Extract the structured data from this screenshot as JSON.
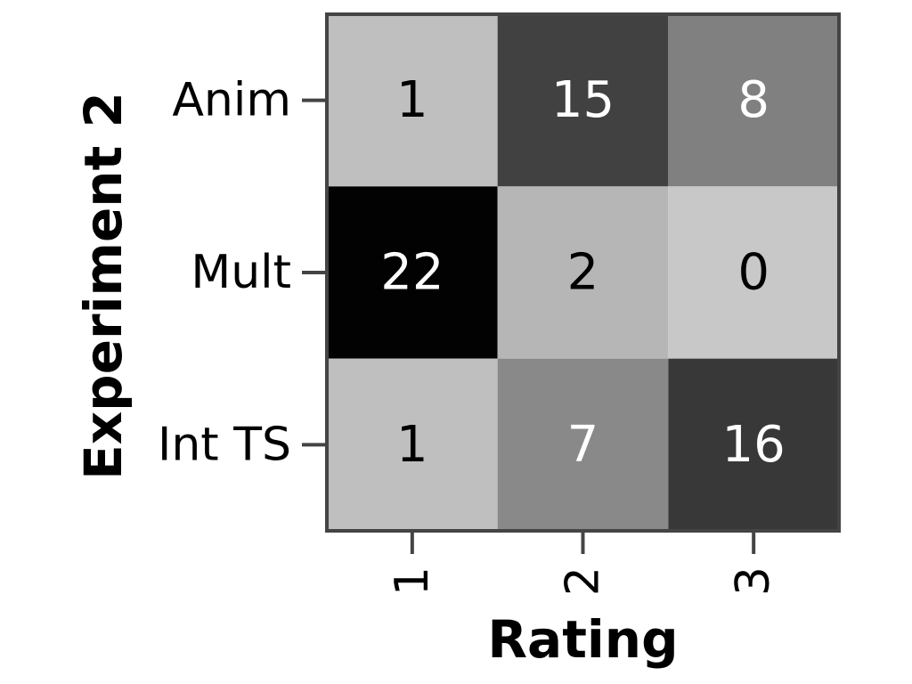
{
  "chart_data": {
    "type": "heatmap",
    "title": "",
    "xlabel": "Rating",
    "ylabel": "Experiment 2",
    "x_categories": [
      "1",
      "2",
      "3"
    ],
    "y_categories": [
      "Anim",
      "Mult",
      "Int TS"
    ],
    "values": [
      [
        1,
        15,
        8
      ],
      [
        22,
        2,
        0
      ],
      [
        1,
        7,
        16
      ]
    ],
    "colormap": "gray_r",
    "value_range": [
      0,
      22
    ],
    "grid": false
  }
}
